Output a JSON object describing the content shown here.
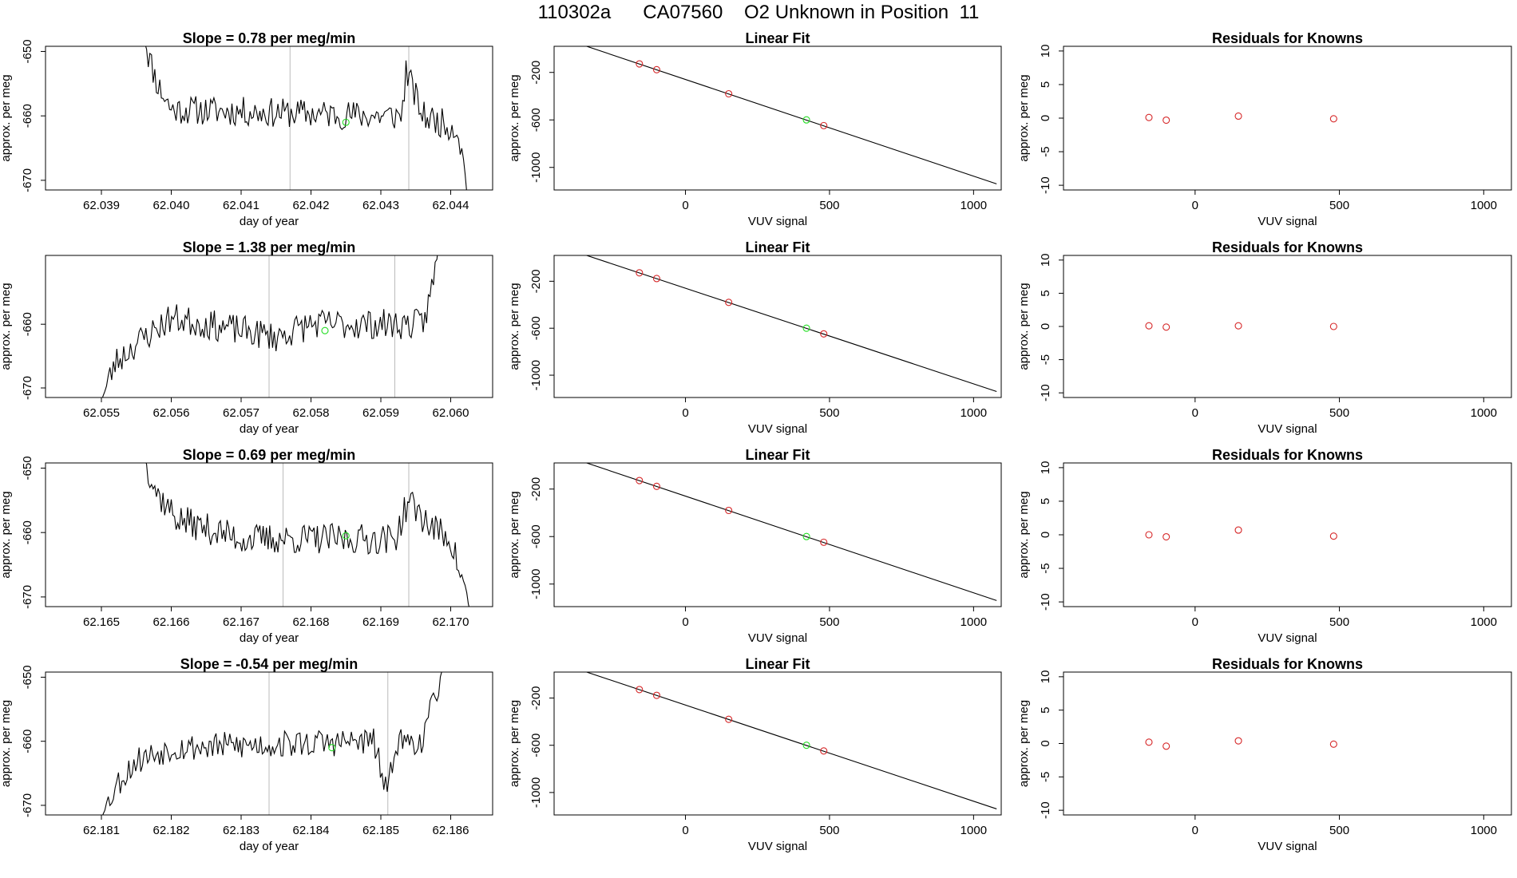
{
  "page_title": "110302a      CA07560    O2 Unknown in Position  11",
  "colors": {
    "trace": "#000000",
    "known": "#d62728",
    "unknown": "#22dd22",
    "vline": "#bbbbbb",
    "fit": "#000000"
  },
  "chart_data": [
    {
      "type": "line",
      "title": "Slope =  0.78  per meg/min",
      "xlabel": "day of year",
      "ylabel": "approx. per meg",
      "xlim": [
        62.0382,
        62.0446
      ],
      "ylim": [
        -671.5,
        -649.2
      ],
      "xticks": [
        62.039,
        62.04,
        62.041,
        62.042,
        62.043,
        62.044
      ],
      "xtick_labels": [
        "62.039",
        "62.040",
        "62.041",
        "62.042",
        "62.043",
        "62.044"
      ],
      "yticks": [
        -670,
        -660,
        -650
      ],
      "ytick_labels": [
        "-670",
        "-660",
        "-650"
      ],
      "vlines": [
        62.0417,
        62.0434
      ],
      "trace_x_range": [
        62.0396,
        62.0443
      ],
      "trace_seed": 11,
      "trace_noise": 2.3,
      "trace_shape": [
        [
          62.0396,
          -648
        ],
        [
          62.0398,
          -655
        ],
        [
          62.04,
          -659
        ],
        [
          62.043,
          -660
        ],
        [
          62.0433,
          -660
        ],
        [
          62.04336,
          -653
        ],
        [
          62.0436,
          -660
        ],
        [
          62.0441,
          -662
        ],
        [
          62.0443,
          -675
        ]
      ],
      "unknown_point": [
        62.0425,
        -661
      ]
    },
    {
      "type": "scatter",
      "title": "Linear Fit",
      "xlabel": "VUV signal",
      "ylabel": "approx. per meg",
      "xlim": [
        -456,
        1096
      ],
      "ylim": [
        -1190,
        20
      ],
      "xticks": [
        0,
        500,
        1000
      ],
      "xtick_labels": [
        "0",
        "500",
        "1000"
      ],
      "yticks": [
        -1000,
        -600,
        -200
      ],
      "ytick_labels": [
        "-1000",
        "-600",
        "-200"
      ],
      "fit_line": [
        [
          -440,
          99
        ],
        [
          1080,
          -1139
        ]
      ],
      "known_points": [
        [
          -160,
          -128
        ],
        [
          -100,
          -177
        ],
        [
          150,
          -380
        ],
        [
          480,
          -648
        ]
      ],
      "unknown_point": [
        420,
        -600
      ]
    },
    {
      "type": "scatter",
      "title": "Residuals for Knowns",
      "xlabel": "VUV signal",
      "ylabel": "approx. per meg",
      "xlim": [
        -456,
        1096
      ],
      "ylim": [
        -10.7,
        10.7
      ],
      "xticks": [
        0,
        500,
        1000
      ],
      "xtick_labels": [
        "0",
        "500",
        "1000"
      ],
      "yticks": [
        -10,
        -5,
        0,
        5,
        10
      ],
      "ytick_labels": [
        "-10",
        "-5",
        "0",
        "5",
        "10"
      ],
      "points": [
        [
          -160,
          0.1
        ],
        [
          -100,
          -0.3
        ],
        [
          150,
          0.3
        ],
        [
          480,
          -0.1
        ]
      ]
    },
    {
      "type": "line",
      "title": "Slope =  1.38  per meg/min",
      "xlabel": "day of year",
      "ylabel": "approx. per meg",
      "xlim": [
        62.0542,
        62.0606
      ],
      "ylim": [
        -671.5,
        -649.2
      ],
      "xticks": [
        62.055,
        62.056,
        62.057,
        62.058,
        62.059,
        62.06
      ],
      "xtick_labels": [
        "62.055",
        "62.056",
        "62.057",
        "62.058",
        "62.059",
        "62.060"
      ],
      "yticks": [
        -670,
        -660
      ],
      "ytick_labels": [
        "-670",
        "-660"
      ],
      "vlines": [
        62.0574,
        62.0592
      ],
      "trace_x_range": [
        62.055,
        62.0599
      ],
      "trace_seed": 23,
      "trace_noise": 2.4,
      "trace_shape": [
        [
          62.055,
          -672
        ],
        [
          62.0552,
          -666
        ],
        [
          62.0555,
          -663
        ],
        [
          62.056,
          -659
        ],
        [
          62.057,
          -661
        ],
        [
          62.0575,
          -662
        ],
        [
          62.058,
          -660
        ],
        [
          62.0596,
          -660
        ],
        [
          62.0597,
          -656
        ],
        [
          62.0599,
          -644
        ]
      ],
      "unknown_point": [
        62.0582,
        -661
      ]
    },
    {
      "type": "scatter",
      "title": "Linear Fit",
      "xlabel": "VUV signal",
      "ylabel": "approx. per meg",
      "xlim": [
        -456,
        1096
      ],
      "ylim": [
        -1190,
        20
      ],
      "xticks": [
        0,
        500,
        1000
      ],
      "xtick_labels": [
        "0",
        "500",
        "1000"
      ],
      "yticks": [
        -1000,
        -600,
        -200
      ],
      "ytick_labels": [
        "-1000",
        "-600",
        "-200"
      ],
      "fit_line": [
        [
          -440,
          99
        ],
        [
          1080,
          -1139
        ]
      ],
      "known_points": [
        [
          -160,
          -128
        ],
        [
          -100,
          -177
        ],
        [
          150,
          -380
        ],
        [
          480,
          -648
        ]
      ],
      "unknown_point": [
        420,
        -600
      ]
    },
    {
      "type": "scatter",
      "title": "Residuals for Knowns",
      "xlabel": "VUV signal",
      "ylabel": "approx. per meg",
      "xlim": [
        -456,
        1096
      ],
      "ylim": [
        -10.7,
        10.7
      ],
      "xticks": [
        0,
        500,
        1000
      ],
      "xtick_labels": [
        "0",
        "500",
        "1000"
      ],
      "yticks": [
        -10,
        -5,
        0,
        5,
        10
      ],
      "ytick_labels": [
        "-10",
        "-5",
        "0",
        "5",
        "10"
      ],
      "points": [
        [
          -160,
          0.1
        ],
        [
          -100,
          -0.1
        ],
        [
          150,
          0.1
        ],
        [
          480,
          0.0
        ]
      ]
    },
    {
      "type": "line",
      "title": "Slope =  0.69  per meg/min",
      "xlabel": "day of year",
      "ylabel": "approx. per meg",
      "xlim": [
        62.1642,
        62.1706
      ],
      "ylim": [
        -671.5,
        -649.2
      ],
      "xticks": [
        62.165,
        62.166,
        62.167,
        62.168,
        62.169,
        62.17
      ],
      "xtick_labels": [
        "62.165",
        "62.166",
        "62.167",
        "62.168",
        "62.169",
        "62.170"
      ],
      "yticks": [
        -670,
        -660,
        -650
      ],
      "ytick_labels": [
        "-670",
        "-660",
        "-650"
      ],
      "vlines": [
        62.1676,
        62.1694
      ],
      "trace_x_range": [
        62.1656,
        62.1703
      ],
      "trace_seed": 37,
      "trace_noise": 2.4,
      "trace_shape": [
        [
          62.1656,
          -648
        ],
        [
          62.1658,
          -654
        ],
        [
          62.1661,
          -658
        ],
        [
          62.167,
          -661
        ],
        [
          62.168,
          -661
        ],
        [
          62.1692,
          -661
        ],
        [
          62.1694,
          -655
        ],
        [
          62.1697,
          -659
        ],
        [
          62.17,
          -661
        ],
        [
          62.1703,
          -673
        ]
      ],
      "unknown_point": [
        62.1685,
        -660.5
      ]
    },
    {
      "type": "scatter",
      "title": "Linear Fit",
      "xlabel": "VUV signal",
      "ylabel": "approx. per meg",
      "xlim": [
        -456,
        1096
      ],
      "ylim": [
        -1190,
        20
      ],
      "xticks": [
        0,
        500,
        1000
      ],
      "xtick_labels": [
        "0",
        "500",
        "1000"
      ],
      "yticks": [
        -1000,
        -600,
        -200
      ],
      "ytick_labels": [
        "-1000",
        "-600",
        "-200"
      ],
      "fit_line": [
        [
          -440,
          99
        ],
        [
          1080,
          -1139
        ]
      ],
      "known_points": [
        [
          -160,
          -128
        ],
        [
          -100,
          -177
        ],
        [
          150,
          -380
        ],
        [
          480,
          -648
        ]
      ],
      "unknown_point": [
        420,
        -600
      ]
    },
    {
      "type": "scatter",
      "title": "Residuals for Knowns",
      "xlabel": "VUV signal",
      "ylabel": "approx. per meg",
      "xlim": [
        -456,
        1096
      ],
      "ylim": [
        -10.7,
        10.7
      ],
      "xticks": [
        0,
        500,
        1000
      ],
      "xtick_labels": [
        "0",
        "500",
        "1000"
      ],
      "yticks": [
        -10,
        -5,
        0,
        5,
        10
      ],
      "ytick_labels": [
        "-10",
        "-5",
        "0",
        "5",
        "10"
      ],
      "points": [
        [
          -160,
          0.0
        ],
        [
          -100,
          -0.3
        ],
        [
          150,
          0.7
        ],
        [
          480,
          -0.2
        ]
      ]
    },
    {
      "type": "line",
      "title": "Slope =  -0.54  per meg/min",
      "xlabel": "day of year",
      "ylabel": "approx. per meg",
      "xlim": [
        62.1802,
        62.1866
      ],
      "ylim": [
        -671.5,
        -649.2
      ],
      "xticks": [
        62.181,
        62.182,
        62.183,
        62.184,
        62.185,
        62.186
      ],
      "xtick_labels": [
        "62.181",
        "62.182",
        "62.183",
        "62.184",
        "62.185",
        "62.186"
      ],
      "yticks": [
        -670,
        -660,
        -650
      ],
      "ytick_labels": [
        "-670",
        "-660",
        "-650"
      ],
      "vlines": [
        62.1834,
        62.1851
      ],
      "trace_x_range": [
        62.181,
        62.1859
      ],
      "trace_seed": 53,
      "trace_noise": 2.2,
      "trace_shape": [
        [
          62.181,
          -672
        ],
        [
          62.1812,
          -667
        ],
        [
          62.1815,
          -663
        ],
        [
          62.182,
          -661
        ],
        [
          62.1849,
          -660
        ],
        [
          62.1851,
          -669
        ],
        [
          62.1852,
          -660
        ],
        [
          62.1856,
          -660
        ],
        [
          62.1859,
          -648
        ]
      ],
      "unknown_point": [
        62.1843,
        -661
      ]
    },
    {
      "type": "scatter",
      "title": "Linear Fit",
      "xlabel": "VUV signal",
      "ylabel": "approx. per meg",
      "xlim": [
        -456,
        1096
      ],
      "ylim": [
        -1190,
        20
      ],
      "xticks": [
        0,
        500,
        1000
      ],
      "xtick_labels": [
        "0",
        "500",
        "1000"
      ],
      "yticks": [
        -1000,
        -600,
        -200
      ],
      "ytick_labels": [
        "-1000",
        "-600",
        "-200"
      ],
      "fit_line": [
        [
          -440,
          99
        ],
        [
          1080,
          -1139
        ]
      ],
      "known_points": [
        [
          -160,
          -128
        ],
        [
          -100,
          -177
        ],
        [
          150,
          -380
        ],
        [
          480,
          -648
        ]
      ],
      "unknown_point": [
        420,
        -600
      ]
    },
    {
      "type": "scatter",
      "title": "Residuals for Knowns",
      "xlabel": "VUV signal",
      "ylabel": "approx. per meg",
      "xlim": [
        -456,
        1096
      ],
      "ylim": [
        -10.7,
        10.7
      ],
      "xticks": [
        0,
        500,
        1000
      ],
      "xtick_labels": [
        "0",
        "500",
        "1000"
      ],
      "yticks": [
        -10,
        -5,
        0,
        5,
        10
      ],
      "ytick_labels": [
        "-10",
        "-5",
        "0",
        "5",
        "10"
      ],
      "points": [
        [
          -160,
          0.2
        ],
        [
          -100,
          -0.4
        ],
        [
          150,
          0.4
        ],
        [
          480,
          -0.1
        ]
      ]
    }
  ]
}
